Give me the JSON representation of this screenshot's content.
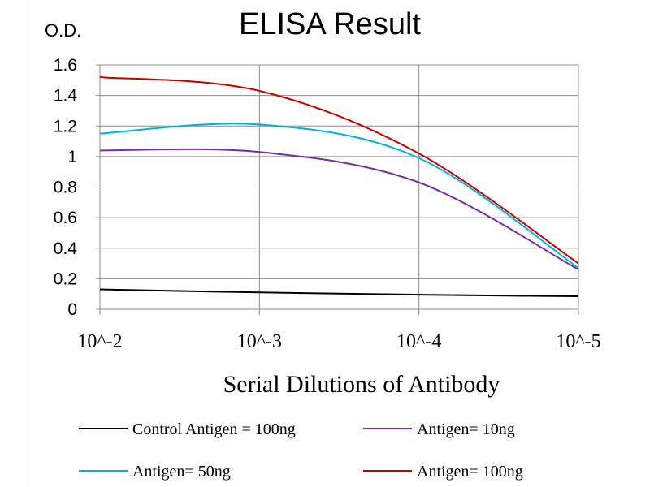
{
  "chart_data": {
    "type": "line",
    "title": "ELISA Result",
    "ylabel": "O.D.",
    "xlabel": "Serial Dilutions  of Antibody",
    "categories": [
      "10^-2",
      "10^-3",
      "10^-4",
      "10^-5"
    ],
    "ylim": [
      0,
      1.6
    ],
    "yticks": [
      "0",
      "0.2",
      "0.4",
      "0.6",
      "0.8",
      "1",
      "1.2",
      "1.4",
      "1.6"
    ],
    "grid": true,
    "legend_position": "bottom",
    "series": [
      {
        "name": "Control Antigen = 100ng",
        "color": "#000000",
        "values": [
          0.13,
          0.11,
          0.095,
          0.085
        ]
      },
      {
        "name": "Antigen= 10ng",
        "color": "#7030a0",
        "values": [
          1.04,
          1.03,
          0.83,
          0.26
        ]
      },
      {
        "name": "Antigen= 50ng",
        "color": "#00b0d8",
        "values": [
          1.15,
          1.21,
          0.99,
          0.27
        ]
      },
      {
        "name": "Antigen= 100ng",
        "color": "#c00000",
        "values": [
          1.52,
          1.43,
          1.02,
          0.3
        ]
      }
    ]
  }
}
